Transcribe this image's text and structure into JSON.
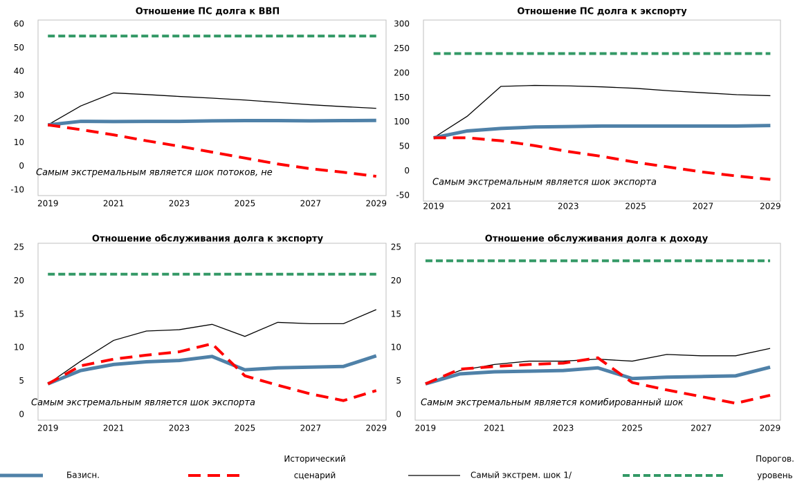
{
  "legend": [
    {
      "name": "Базисн.",
      "color": "#4f81a8",
      "width": 5,
      "dash": "none"
    },
    {
      "name": "Исторический сценарий",
      "color": "#ff0000",
      "width": 4,
      "dash": "18 10"
    },
    {
      "name": "Самый экстрем. шок 1/",
      "color": "#000000",
      "width": 1.3,
      "dash": "none"
    },
    {
      "name": "Порогов. уровень",
      "color": "#339966",
      "width": 4,
      "dash": "10 5"
    }
  ],
  "chart_data": [
    {
      "type": "line",
      "title": "Отношение ПС долга к ВВП",
      "annotation": "Самым экстремальным является шок потоков, не",
      "x": [
        2019,
        2020,
        2021,
        2022,
        2023,
        2024,
        2025,
        2026,
        2027,
        2028,
        2029
      ],
      "xlim": [
        2018.7,
        2029.3
      ],
      "xticks": [
        2019,
        2021,
        2023,
        2025,
        2027,
        2029
      ],
      "ylim": [
        -10,
        60
      ],
      "yticks": [
        -10,
        0,
        10,
        20,
        30,
        40,
        50,
        60
      ],
      "series": [
        {
          "values": [
            17.5,
            19,
            18.9,
            19,
            19,
            19.2,
            19.3,
            19.3,
            19.2,
            19.3,
            19.4
          ]
        },
        {
          "values": [
            17.5,
            15.5,
            13.3,
            10.8,
            8.5,
            6,
            3.5,
            1,
            -1,
            -2.5,
            -4.2
          ]
        },
        {
          "values": [
            17.5,
            25.5,
            31,
            30.3,
            29.5,
            28.8,
            28,
            27,
            26,
            25.2,
            24.5
          ]
        },
        {
          "values": [
            55,
            55,
            55,
            55,
            55,
            55,
            55,
            55,
            55,
            55,
            55
          ]
        }
      ]
    },
    {
      "type": "line",
      "title": "Отношение ПС долга к экспорту",
      "annotation": "Самым экстремальным является шок экспорта",
      "x": [
        2019,
        2020,
        2021,
        2022,
        2023,
        2024,
        2025,
        2026,
        2027,
        2028,
        2029
      ],
      "xlim": [
        2018.7,
        2029.3
      ],
      "xticks": [
        2019,
        2021,
        2023,
        2025,
        2027,
        2029
      ],
      "ylim": [
        -50,
        300
      ],
      "yticks": [
        -50,
        0,
        50,
        100,
        150,
        200,
        250,
        300
      ],
      "series": [
        {
          "values": [
            68,
            82,
            87,
            90,
            91,
            92,
            92,
            92,
            92,
            92,
            93
          ]
        },
        {
          "values": [
            68,
            68,
            62,
            52,
            40,
            30,
            18,
            8,
            -2,
            -10,
            -17
          ]
        },
        {
          "values": [
            68,
            112,
            173,
            175,
            174,
            172,
            169,
            164,
            160,
            156,
            154
          ]
        },
        {
          "values": [
            240,
            240,
            240,
            240,
            240,
            240,
            240,
            240,
            240,
            240,
            240
          ]
        }
      ]
    },
    {
      "type": "line",
      "title": "Отношение обслуживания долга к экспорту",
      "annotation": "Самым экстремальным является шок экспорта",
      "x": [
        2019,
        2020,
        2021,
        2022,
        2023,
        2024,
        2025,
        2026,
        2027,
        2028,
        2029
      ],
      "xlim": [
        2018.7,
        2029.3
      ],
      "xticks": [
        2019,
        2021,
        2023,
        2025,
        2027,
        2029
      ],
      "ylim": [
        0,
        25
      ],
      "yticks": [
        0,
        5,
        10,
        15,
        20,
        25
      ],
      "series": [
        {
          "values": [
            4.6,
            6.6,
            7.5,
            7.9,
            8.1,
            8.7,
            6.7,
            7,
            7.1,
            7.2,
            8.8
          ]
        },
        {
          "values": [
            4.6,
            7.3,
            8.3,
            8.9,
            9.4,
            10.6,
            5.8,
            4.4,
            3.1,
            2.1,
            3.6
          ]
        },
        {
          "values": [
            4.6,
            8,
            11.1,
            12.5,
            12.7,
            13.5,
            11.7,
            13.8,
            13.6,
            13.6,
            15.7
          ]
        },
        {
          "values": [
            21,
            21,
            21,
            21,
            21,
            21,
            21,
            21,
            21,
            21,
            21
          ]
        }
      ]
    },
    {
      "type": "line",
      "title": "Отношение обслуживания долга к доходу",
      "annotation": "Самым экстремальным является комибированный шок",
      "x": [
        2019,
        2020,
        2021,
        2022,
        2023,
        2024,
        2025,
        2026,
        2027,
        2028,
        2029
      ],
      "xlim": [
        2018.7,
        2029.3
      ],
      "xticks": [
        2019,
        2021,
        2023,
        2025,
        2027,
        2029
      ],
      "ylim": [
        0,
        25
      ],
      "yticks": [
        0,
        5,
        10,
        15,
        20,
        25
      ],
      "series": [
        {
          "values": [
            4.6,
            6.1,
            6.4,
            6.5,
            6.6,
            7,
            5.4,
            5.6,
            5.7,
            5.8,
            7.1
          ]
        },
        {
          "values": [
            4.6,
            6.8,
            7.2,
            7.5,
            7.7,
            8.5,
            4.8,
            3.7,
            2.7,
            1.7,
            2.9
          ]
        },
        {
          "values": [
            4.6,
            6.6,
            7.5,
            8,
            8,
            8.3,
            8,
            9,
            8.8,
            8.8,
            9.9
          ]
        },
        {
          "values": [
            23,
            23,
            23,
            23,
            23,
            23,
            23,
            23,
            23,
            23,
            23
          ]
        }
      ]
    }
  ]
}
